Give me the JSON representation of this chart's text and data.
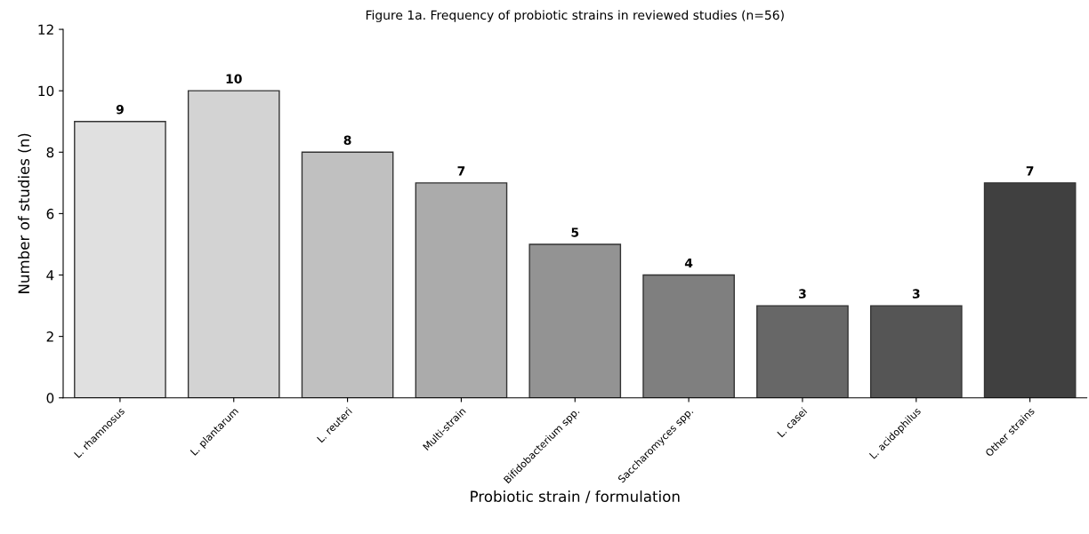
{
  "chart_data": {
    "type": "bar",
    "title": "Figure 1a. Frequency of probiotic strains in reviewed studies (n=56)",
    "xlabel": "Probiotic strain / formulation",
    "ylabel": "Number of studies (n)",
    "categories": [
      "L. rhamnosus",
      "L. plantarum",
      "L. reuteri",
      "Multi-strain",
      "Bifidobacterium spp.",
      "Saccharomyces spp.",
      "L. casei",
      "L. acidophilus",
      "Other strains"
    ],
    "values": [
      9,
      10,
      8,
      7,
      5,
      4,
      3,
      3,
      7
    ],
    "colors": [
      "#e0e0e0",
      "#d3d3d3",
      "#c0c0c0",
      "#ababab",
      "#939393",
      "#7f7f7f",
      "#676767",
      "#555555",
      "#404040"
    ],
    "ylim": [
      0,
      12
    ],
    "yticks": [
      0,
      2,
      4,
      6,
      8,
      10,
      12
    ],
    "data_labels": true,
    "grid": false,
    "legend": false
  }
}
